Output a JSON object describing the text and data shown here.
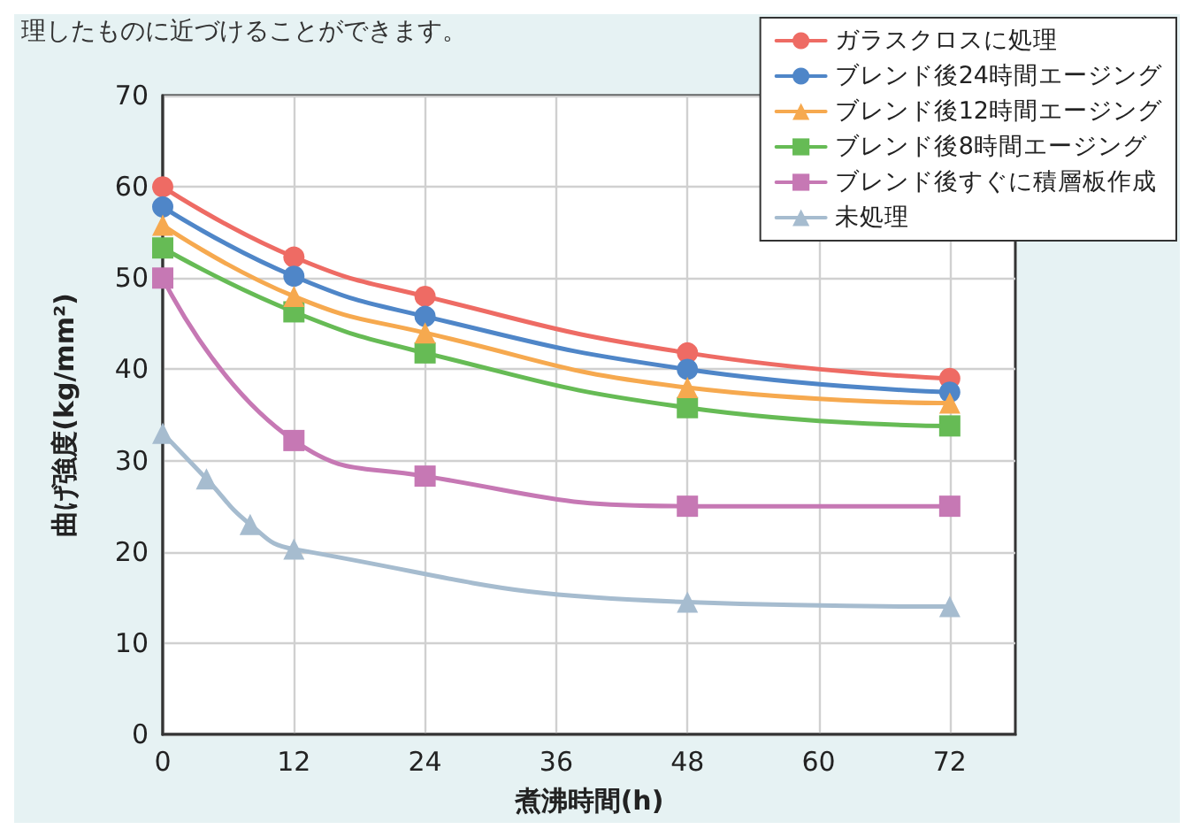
{
  "chart_data": {
    "type": "line",
    "xlabel": "煮沸時間(h)",
    "ylabel": "曲げ強度(kg/mm²)",
    "annotations": [
      "理したものに近づけることができます。"
    ],
    "xlim": [
      0,
      78
    ],
    "xticks": [
      0,
      12,
      24,
      36,
      48,
      60,
      72
    ],
    "ylim": [
      0,
      70
    ],
    "yticks": [
      0,
      10,
      20,
      30,
      40,
      50,
      60,
      70
    ],
    "grid": true,
    "legend": "top right",
    "line_style": "solid",
    "series": [
      {
        "name": "ガラスクロスに処理",
        "color": "#ee6b64",
        "marker": "circle",
        "x": [
          0,
          12,
          24,
          48,
          72
        ],
        "values": [
          60,
          52.3,
          48,
          41.8,
          39
        ]
      },
      {
        "name": "ブレンド後24時間エージング",
        "color": "#4f86c8",
        "marker": "circle",
        "x": [
          0,
          12,
          24,
          48,
          72
        ],
        "values": [
          57.8,
          50.2,
          45.8,
          40,
          37.5
        ]
      },
      {
        "name": "ブレンド後12時間エージング",
        "color": "#f6a94f",
        "marker": "triangle",
        "x": [
          0,
          12,
          24,
          48,
          72
        ],
        "values": [
          55.8,
          48,
          44,
          38,
          36.3
        ]
      },
      {
        "name": "ブレンド後8時間エージング",
        "color": "#66bb55",
        "marker": "square",
        "x": [
          0,
          12,
          24,
          48,
          72
        ],
        "values": [
          53.3,
          46.3,
          41.8,
          35.8,
          33.8
        ]
      },
      {
        "name": "ブレンド後すぐに積層板作成",
        "color": "#c678b4",
        "marker": "square",
        "x": [
          0,
          12,
          24,
          48,
          72
        ],
        "values": [
          50,
          32.2,
          28.3,
          25,
          25
        ]
      },
      {
        "name": "未処理",
        "color": "#a6bccf",
        "marker": "triangle",
        "x": [
          0,
          4,
          8,
          12,
          48,
          72
        ],
        "values": [
          33,
          28,
          23,
          20.3,
          14.5,
          14
        ]
      }
    ]
  }
}
